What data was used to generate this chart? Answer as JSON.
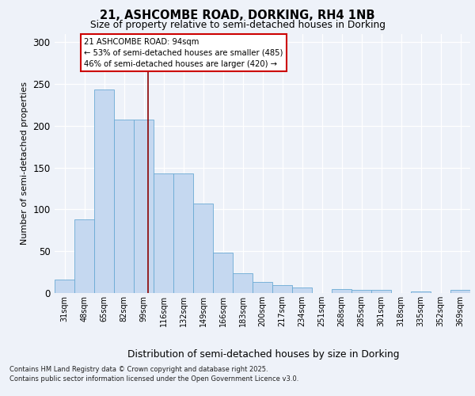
{
  "title1": "21, ASHCOMBE ROAD, DORKING, RH4 1NB",
  "title2": "Size of property relative to semi-detached houses in Dorking",
  "xlabel": "Distribution of semi-detached houses by size in Dorking",
  "ylabel": "Number of semi-detached properties",
  "categories": [
    "31sqm",
    "48sqm",
    "65sqm",
    "82sqm",
    "99sqm",
    "116sqm",
    "132sqm",
    "149sqm",
    "166sqm",
    "183sqm",
    "200sqm",
    "217sqm",
    "234sqm",
    "251sqm",
    "268sqm",
    "285sqm",
    "301sqm",
    "318sqm",
    "335sqm",
    "352sqm",
    "369sqm"
  ],
  "values": [
    16,
    88,
    243,
    207,
    207,
    143,
    143,
    107,
    48,
    24,
    13,
    9,
    7,
    0,
    5,
    4,
    4,
    0,
    2,
    0,
    4
  ],
  "bar_color": "#c5d8f0",
  "bar_edge_color": "#6aaad4",
  "vline_x": 4.4,
  "vline_color": "#8b0000",
  "annotation_title": "21 ASHCOMBE ROAD: 94sqm",
  "annotation_line1": "← 53% of semi-detached houses are smaller (485)",
  "annotation_line2": "46% of semi-detached houses are larger (420) →",
  "annotation_box_color": "#ffffff",
  "annotation_box_edge": "#cc0000",
  "footer1": "Contains HM Land Registry data © Crown copyright and database right 2025.",
  "footer2": "Contains public sector information licensed under the Open Government Licence v3.0.",
  "bg_color": "#eef2f9",
  "ylim_max": 310,
  "yticks": [
    0,
    50,
    100,
    150,
    200,
    250,
    300
  ]
}
